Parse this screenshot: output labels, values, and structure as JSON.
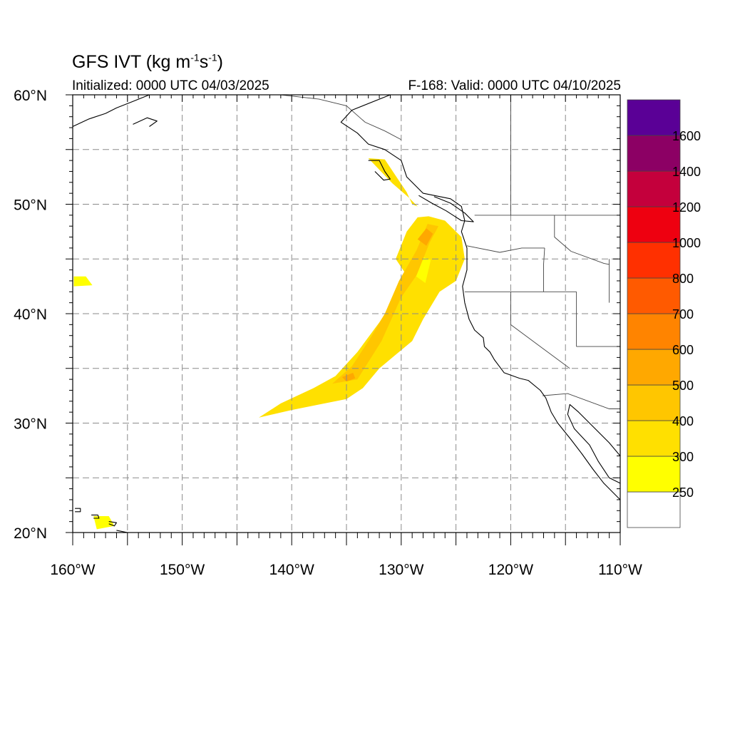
{
  "header": {
    "model": "GFS IVT (kg m",
    "unit_exp1": "-1",
    "unit_mid": "s",
    "unit_exp2": "-1",
    "unit_close": ")",
    "initialized": "Initialized: 0000 UTC 04/03/2025",
    "valid": "F-168: Valid: 0000 UTC 04/10/2025"
  },
  "axes": {
    "lon_range": [
      -160,
      -110
    ],
    "lat_range": [
      20,
      60
    ],
    "x_ticks": [
      {
        "lon": -160,
        "label": "160°W"
      },
      {
        "lon": -150,
        "label": "150°W"
      },
      {
        "lon": -140,
        "label": "140°W"
      },
      {
        "lon": -130,
        "label": "130°W"
      },
      {
        "lon": -120,
        "label": "120°W"
      },
      {
        "lon": -110,
        "label": "110°W"
      }
    ],
    "y_ticks": [
      {
        "lat": 60,
        "label": "60°N"
      },
      {
        "lat": 50,
        "label": "50°N"
      },
      {
        "lat": 40,
        "label": "40°N"
      },
      {
        "lat": 30,
        "label": "30°N"
      },
      {
        "lat": 20,
        "label": "20°N"
      }
    ],
    "grid": "dashed, every 5°"
  },
  "colorbar": {
    "levels": [
      "250",
      "300",
      "400",
      "500",
      "600",
      "700",
      "800",
      "1000",
      "1200",
      "1400",
      "1600"
    ],
    "colors": [
      "#ffffff",
      "#ffff00",
      "#ffe000",
      "#ffc600",
      "#ffa800",
      "#ff8400",
      "#ff5a00",
      "#ff3000",
      "#ee0010",
      "#c4003c",
      "#8c0064",
      "#5a0096"
    ]
  },
  "ivt_regions": [
    {
      "color": "#ffe000",
      "points": [
        [
          -143,
          30.5
        ],
        [
          -141,
          31.8
        ],
        [
          -138,
          33.2
        ],
        [
          -136,
          34.3
        ],
        [
          -134,
          36.5
        ],
        [
          -132,
          39.2
        ],
        [
          -130.5,
          41.5
        ],
        [
          -129.5,
          43.5
        ],
        [
          -130.5,
          45
        ],
        [
          -129.5,
          47.5
        ],
        [
          -128.5,
          48.8
        ],
        [
          -127.5,
          48.9
        ],
        [
          -126,
          48.5
        ],
        [
          -124.5,
          47
        ],
        [
          -124.2,
          45
        ],
        [
          -125,
          43
        ],
        [
          -126.5,
          42
        ],
        [
          -128,
          39.5
        ],
        [
          -129,
          37.5
        ],
        [
          -130.8,
          36
        ],
        [
          -132,
          35
        ],
        [
          -133.5,
          33.2
        ],
        [
          -135,
          32.2
        ],
        [
          -137,
          31.8
        ],
        [
          -140,
          31.2
        ]
      ]
    },
    {
      "color": "#ffe000",
      "points": [
        [
          -133,
          54.2
        ],
        [
          -131.5,
          54.1
        ],
        [
          -130.5,
          52.6
        ],
        [
          -129.5,
          51.1
        ],
        [
          -129,
          50
        ],
        [
          -128.5,
          49.8
        ],
        [
          -129.3,
          50.6
        ],
        [
          -130.8,
          51.9
        ]
      ]
    },
    {
      "color": "#ffff00",
      "points": [
        [
          -159.9,
          43.4
        ],
        [
          -158.8,
          43.4
        ],
        [
          -158.2,
          42.6
        ],
        [
          -159.9,
          42.5
        ]
      ]
    },
    {
      "color": "#ffff00",
      "points": [
        [
          -158.1,
          21.5
        ],
        [
          -156.7,
          21.5
        ],
        [
          -156.2,
          20.6
        ],
        [
          -157.8,
          20.3
        ]
      ]
    },
    {
      "color": "#ffff00",
      "points": [
        [
          -128.9,
          43.6
        ],
        [
          -128.3,
          45.3
        ],
        [
          -127.3,
          44.9
        ],
        [
          -127.8,
          42.8
        ]
      ]
    },
    {
      "color": "#ffc600",
      "points": [
        [
          -136.3,
          33.6
        ],
        [
          -134,
          34
        ],
        [
          -131.8,
          37.5
        ],
        [
          -130,
          41.5
        ],
        [
          -128.6,
          43.5
        ],
        [
          -127.4,
          46.5
        ],
        [
          -126.6,
          48
        ],
        [
          -127.6,
          48.2
        ],
        [
          -128.6,
          45.8
        ],
        [
          -130.2,
          43
        ],
        [
          -131.5,
          40
        ],
        [
          -132.8,
          37.8
        ],
        [
          -134.5,
          35.2
        ]
      ]
    },
    {
      "color": "#ffa800",
      "points": [
        [
          -128.5,
          46.8
        ],
        [
          -127.7,
          47.8
        ],
        [
          -127.1,
          47.3
        ],
        [
          -127.7,
          46.2
        ]
      ]
    },
    {
      "color": "#ffa800",
      "points": [
        [
          -135.4,
          34.2
        ],
        [
          -134.4,
          34.6
        ],
        [
          -134.2,
          34.1
        ],
        [
          -135,
          33.8
        ]
      ]
    }
  ],
  "coastlines": [
    {
      "name": "north-america",
      "points": [
        [
          -131,
          60
        ],
        [
          -134.5,
          58.6
        ],
        [
          -135.5,
          57.5
        ],
        [
          -134,
          56.5
        ],
        [
          -133,
          55.5
        ],
        [
          -131.5,
          55
        ],
        [
          -130,
          54
        ],
        [
          -129.5,
          52.5
        ],
        [
          -128,
          51
        ],
        [
          -125.5,
          50.5
        ],
        [
          -124.5,
          49.8
        ],
        [
          -124.2,
          48.5
        ],
        [
          -124.5,
          47.5
        ],
        [
          -124,
          46
        ],
        [
          -124,
          44
        ],
        [
          -124.4,
          42.5
        ],
        [
          -124.2,
          41
        ],
        [
          -123.8,
          39.5
        ],
        [
          -123.3,
          38.5
        ],
        [
          -122.5,
          37.8
        ],
        [
          -122.4,
          37
        ],
        [
          -121.9,
          36.5
        ],
        [
          -121.5,
          35.8
        ],
        [
          -120.6,
          34.6
        ],
        [
          -119.2,
          34.1
        ],
        [
          -118.4,
          33.9
        ],
        [
          -117.3,
          33
        ],
        [
          -116.8,
          32.3
        ],
        [
          -116.3,
          31
        ],
        [
          -115.7,
          30
        ],
        [
          -114.5,
          28.5
        ],
        [
          -113.5,
          27.2
        ],
        [
          -112.5,
          25.8
        ],
        [
          -111.5,
          24.5
        ],
        [
          -110,
          23
        ]
      ]
    },
    {
      "name": "gulf-of-california",
      "points": [
        [
          -110,
          27
        ],
        [
          -111,
          28.2
        ],
        [
          -112.5,
          29.7
        ],
        [
          -113.8,
          31
        ],
        [
          -114.6,
          31.7
        ],
        [
          -114.8,
          30.8
        ],
        [
          -114.2,
          29.5
        ],
        [
          -112.8,
          28
        ],
        [
          -112,
          26.5
        ],
        [
          -111,
          25
        ],
        [
          -110,
          24.5
        ]
      ]
    },
    {
      "name": "alaska-southwest",
      "points": [
        [
          -160,
          57.1
        ],
        [
          -158.5,
          57.8
        ],
        [
          -157,
          58.3
        ],
        [
          -156,
          58.8
        ],
        [
          -154.5,
          59.4
        ],
        [
          -153,
          60
        ]
      ]
    },
    {
      "name": "kodiak-island",
      "points": [
        [
          -154.5,
          57.3
        ],
        [
          -153.2,
          57.9
        ],
        [
          -152.3,
          57.6
        ],
        [
          -153,
          57.1
        ]
      ]
    },
    {
      "name": "vancouver-island",
      "points": [
        [
          -128.4,
          50.8
        ],
        [
          -127.2,
          50.1
        ],
        [
          -125.9,
          49.4
        ],
        [
          -124.5,
          48.5
        ],
        [
          -123.4,
          48.4
        ],
        [
          -124.2,
          49.2
        ],
        [
          -125.5,
          50.1
        ],
        [
          -127,
          50.7
        ]
      ]
    },
    {
      "name": "haida-gwaii",
      "points": [
        [
          -133,
          54
        ],
        [
          -132,
          54
        ],
        [
          -131.5,
          53
        ],
        [
          -131,
          52.3
        ],
        [
          -131.6,
          52.2
        ],
        [
          -132.4,
          53
        ]
      ]
    },
    {
      "name": "hawaii-big-island",
      "points": [
        [
          -156,
          20.2
        ],
        [
          -155,
          20
        ],
        [
          -155,
          19.5
        ],
        [
          -155.9,
          19.5
        ]
      ]
    },
    {
      "name": "maui",
      "points": [
        [
          -156.7,
          21
        ],
        [
          -156,
          20.9
        ],
        [
          -156.2,
          20.6
        ],
        [
          -156.7,
          20.8
        ]
      ]
    },
    {
      "name": "oahu",
      "points": [
        [
          -158.3,
          21.6
        ],
        [
          -157.7,
          21.6
        ],
        [
          -157.6,
          21.3
        ],
        [
          -158.1,
          21.3
        ]
      ]
    },
    {
      "name": "kauai",
      "points": [
        [
          -159.8,
          22.2
        ],
        [
          -159.3,
          22.2
        ],
        [
          -159.3,
          21.9
        ],
        [
          -159.8,
          21.9
        ]
      ]
    }
  ],
  "borders": [
    {
      "name": "us-canada-border",
      "points": [
        [
          -123.3,
          49
        ],
        [
          -110,
          49
        ]
      ]
    },
    {
      "name": "alaska-bc-border",
      "points": [
        [
          -130,
          55.9
        ],
        [
          -131.5,
          56.7
        ],
        [
          -133.3,
          57.5
        ],
        [
          -135,
          59
        ],
        [
          -137.5,
          59.6
        ],
        [
          -141,
          60
        ]
      ]
    },
    {
      "name": "meridian-120w",
      "points": [
        [
          -120,
          60
        ],
        [
          -120,
          49
        ]
      ]
    },
    {
      "name": "wa-or",
      "points": [
        [
          -124,
          46.2
        ],
        [
          -121,
          45.6
        ],
        [
          -119,
          46
        ],
        [
          -116.9,
          46
        ]
      ]
    },
    {
      "name": "or-ca",
      "points": [
        [
          -124.2,
          42
        ],
        [
          -120,
          42
        ]
      ]
    },
    {
      "name": "or-id",
      "points": [
        [
          -116.9,
          46
        ],
        [
          -117,
          44.5
        ],
        [
          -117,
          42
        ]
      ]
    },
    {
      "name": "ca-nv-oregon-line",
      "points": [
        [
          -120,
          42
        ],
        [
          -114,
          42
        ]
      ]
    },
    {
      "name": "ca-nv",
      "points": [
        [
          -120,
          42
        ],
        [
          -120,
          39
        ],
        [
          -114.6,
          35
        ]
      ]
    },
    {
      "name": "nv-ut",
      "points": [
        [
          -114,
          42
        ],
        [
          -114,
          37
        ]
      ]
    },
    {
      "name": "az-ut",
      "points": [
        [
          -114,
          37
        ],
        [
          -110,
          37
        ]
      ]
    },
    {
      "name": "id-mt",
      "points": [
        [
          -116,
          49
        ],
        [
          -116,
          47
        ],
        [
          -114.5,
          45.7
        ],
        [
          -111.5,
          44.6
        ],
        [
          -111,
          44.5
        ]
      ]
    },
    {
      "name": "wy-west",
      "points": [
        [
          -111,
          45
        ],
        [
          -111,
          41
        ]
      ]
    },
    {
      "name": "us-mexico",
      "points": [
        [
          -117.1,
          32.5
        ],
        [
          -114.8,
          32.7
        ],
        [
          -111,
          31.3
        ],
        [
          -110,
          31.3
        ]
      ]
    }
  ]
}
